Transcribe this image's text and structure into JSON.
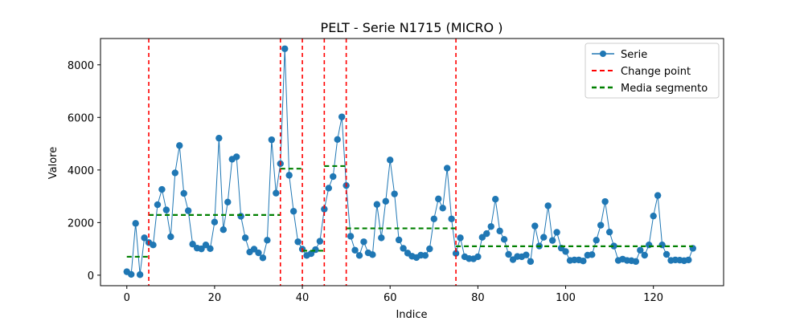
{
  "chart_data": {
    "type": "line",
    "title": "PELT - Serie N1715 (MICRO       )",
    "xlabel": "Indice",
    "ylabel": "Valore",
    "xlim": [
      -6,
      136
    ],
    "ylim": [
      -400,
      9000
    ],
    "xticks": [
      0,
      20,
      40,
      60,
      80,
      100,
      120
    ],
    "yticks": [
      0,
      2000,
      4000,
      6000,
      8000
    ],
    "grid": false,
    "legend_position": "top-right",
    "series": [
      {
        "name": "Serie",
        "color": "#1f77b4",
        "marker": "circle",
        "x": [
          0,
          1,
          2,
          3,
          4,
          5,
          6,
          7,
          8,
          9,
          10,
          11,
          12,
          13,
          14,
          15,
          16,
          17,
          18,
          19,
          20,
          21,
          22,
          23,
          24,
          25,
          26,
          27,
          28,
          29,
          30,
          31,
          32,
          33,
          34,
          35,
          36,
          37,
          38,
          39,
          40,
          41,
          42,
          43,
          44,
          45,
          46,
          47,
          48,
          49,
          50,
          51,
          52,
          53,
          54,
          55,
          56,
          57,
          58,
          59,
          60,
          61,
          62,
          63,
          64,
          65,
          66,
          67,
          68,
          69,
          70,
          71,
          72,
          73,
          74,
          75,
          76,
          77,
          78,
          79,
          80,
          81,
          82,
          83,
          84,
          85,
          86,
          87,
          88,
          89,
          90,
          91,
          92,
          93,
          94,
          95,
          96,
          97,
          98,
          99,
          100,
          101,
          102,
          103,
          104,
          105,
          106,
          107,
          108,
          109,
          110,
          111,
          112,
          113,
          114,
          115,
          116,
          117,
          118,
          119,
          120,
          121,
          122,
          123,
          124,
          125,
          126,
          127,
          128,
          129
        ],
        "values": [
          130,
          30,
          1970,
          20,
          1420,
          1240,
          1150,
          2680,
          3260,
          2480,
          1460,
          3890,
          4930,
          3110,
          2450,
          1180,
          1030,
          1000,
          1150,
          1010,
          2020,
          5210,
          1730,
          2780,
          4410,
          4500,
          2240,
          1420,
          880,
          990,
          850,
          660,
          1330,
          5150,
          3120,
          4240,
          8610,
          3800,
          2430,
          1270,
          990,
          750,
          820,
          970,
          1290,
          2510,
          3310,
          3750,
          5160,
          6020,
          3410,
          1480,
          950,
          750,
          1270,
          850,
          780,
          2690,
          1420,
          2810,
          4380,
          3090,
          1340,
          1020,
          840,
          720,
          670,
          760,
          750,
          1000,
          2140,
          2900,
          2550,
          4070,
          2140,
          830,
          1420,
          700,
          630,
          620,
          700,
          1440,
          1580,
          1850,
          2890,
          1680,
          1360,
          790,
          590,
          710,
          700,
          770,
          520,
          1870,
          1110,
          1440,
          2640,
          1320,
          1630,
          1030,
          900,
          560,
          580,
          580,
          540,
          760,
          780,
          1330,
          1900,
          2800,
          1640,
          1110,
          560,
          610,
          560,
          550,
          520,
          950,
          760,
          1150,
          2250,
          3030,
          1150,
          790,
          560,
          580,
          570,
          550,
          580,
          1020
        ]
      },
      {
        "name": "Change point",
        "color": "#ff0000",
        "style": "dashed",
        "x": [
          5,
          35,
          40,
          45,
          50,
          75
        ]
      },
      {
        "name": "Media segmento",
        "color": "#008000",
        "style": "dashed",
        "segments": [
          {
            "x": [
              0,
              5
            ],
            "y": 700
          },
          {
            "x": [
              5,
              35
            ],
            "y": 2290
          },
          {
            "x": [
              35,
              40
            ],
            "y": 4050
          },
          {
            "x": [
              40,
              45
            ],
            "y": 930
          },
          {
            "x": [
              45,
              50
            ],
            "y": 4150
          },
          {
            "x": [
              50,
              75
            ],
            "y": 1780
          },
          {
            "x": [
              75,
              129
            ],
            "y": 1100
          }
        ]
      }
    ]
  }
}
